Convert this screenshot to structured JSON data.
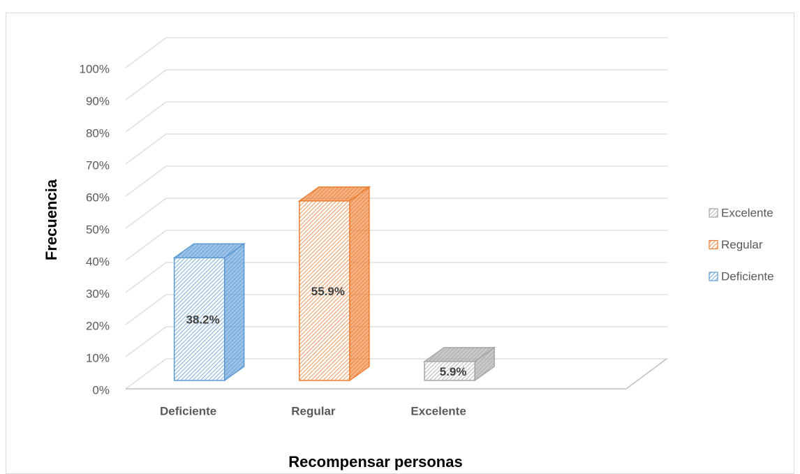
{
  "chart_data": {
    "type": "bar3d",
    "x_label": "Recompensar personas",
    "y_label": "Frecuencia",
    "categories": [
      "Deficiente",
      "Regular",
      "Excelente"
    ],
    "series": [
      {
        "name": "Deficiente",
        "color": "#5b9bd5",
        "values": [
          38.2,
          null,
          null
        ],
        "value_labels": [
          "38.2%",
          null,
          null
        ]
      },
      {
        "name": "Regular",
        "color": "#ed7d31",
        "values": [
          null,
          55.9,
          null
        ],
        "value_labels": [
          null,
          "55.9%",
          null
        ]
      },
      {
        "name": "Excelente",
        "color": "#a5a5a5",
        "values": [
          null,
          null,
          5.9
        ],
        "value_labels": [
          null,
          null,
          "5.9%"
        ]
      }
    ],
    "ylim": [
      0,
      100
    ],
    "yticks": [
      {
        "value": 0,
        "label": "0%"
      },
      {
        "value": 10,
        "label": "10%"
      },
      {
        "value": 20,
        "label": "20%"
      },
      {
        "value": 30,
        "label": "30%"
      },
      {
        "value": 40,
        "label": "40%"
      },
      {
        "value": 50,
        "label": "50%"
      },
      {
        "value": 60,
        "label": "60%"
      },
      {
        "value": 70,
        "label": "70%"
      },
      {
        "value": 80,
        "label": "80%"
      },
      {
        "value": 90,
        "label": "90%"
      },
      {
        "value": 100,
        "label": "100%"
      }
    ],
    "grid": true,
    "legend": "right"
  }
}
